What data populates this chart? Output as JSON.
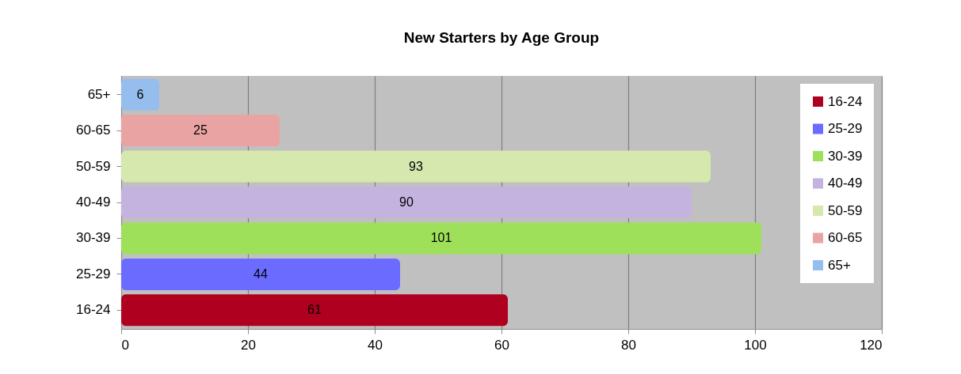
{
  "chart_data": {
    "type": "bar",
    "orientation": "horizontal",
    "stacked": true,
    "title": "New Starters by Age Group",
    "categories": [
      "65+",
      "60-65",
      "50-59",
      "40-49",
      "30-39",
      "25-29",
      "16-24"
    ],
    "series": [
      {
        "name": "16-24",
        "color": "#b00020",
        "values": [
          null,
          null,
          null,
          null,
          null,
          null,
          61
        ]
      },
      {
        "name": "25-29",
        "color": "#6b6bff",
        "values": [
          null,
          null,
          null,
          null,
          null,
          44,
          null
        ]
      },
      {
        "name": "30-39",
        "color": "#9ee05a",
        "values": [
          null,
          null,
          null,
          null,
          101,
          null,
          null
        ]
      },
      {
        "name": "40-49",
        "color": "#c4b3df",
        "values": [
          null,
          null,
          null,
          90,
          null,
          null,
          null
        ]
      },
      {
        "name": "50-59",
        "color": "#d6e8ae",
        "values": [
          null,
          null,
          93,
          null,
          null,
          null,
          null
        ]
      },
      {
        "name": "60-65",
        "color": "#eaa3a3",
        "values": [
          null,
          25,
          null,
          null,
          null,
          null,
          null
        ]
      },
      {
        "name": "65+",
        "color": "#95bdee",
        "values": [
          6,
          null,
          null,
          null,
          null,
          null,
          null
        ]
      }
    ],
    "xlim": [
      0,
      120
    ],
    "xticks": [
      0,
      20,
      40,
      60,
      80,
      100,
      120
    ],
    "grid": "x",
    "legend": "top right",
    "data_labels": true
  }
}
